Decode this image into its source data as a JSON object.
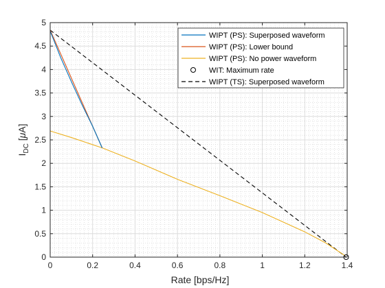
{
  "chart_data": {
    "type": "line",
    "xlabel": "Rate [bps/Hz]",
    "ylabel": {
      "main": "I",
      "sub": "DC",
      "unit_prefix": " [",
      "unit_mu": "μ",
      "unit_rest": "A]"
    },
    "xlim": [
      0,
      1.4
    ],
    "ylim": [
      0,
      5
    ],
    "xticks": [
      0,
      0.2,
      0.4,
      0.6,
      0.8,
      1,
      1.2,
      1.4
    ],
    "yticks": [
      0,
      0.5,
      1,
      1.5,
      2,
      2.5,
      3,
      3.5,
      4,
      4.5,
      5
    ],
    "xtick_labels": [
      "0",
      "0.2",
      "0.4",
      "0.6",
      "0.8",
      "1",
      "1.2",
      "1.4"
    ],
    "ytick_labels": [
      "0",
      "0.5",
      "1",
      "1.5",
      "2",
      "2.5",
      "3",
      "3.5",
      "4",
      "4.5",
      "5"
    ],
    "grid": true,
    "minor_grid": true,
    "legend_position": "top-right",
    "series": [
      {
        "name": "WIPT (PS): Superposed waveform",
        "color": "#0072BD",
        "style": "solid",
        "x": [
          0,
          0.05,
          0.1,
          0.15,
          0.2,
          0.245
        ],
        "y": [
          4.82,
          4.25,
          3.74,
          3.25,
          2.79,
          2.33
        ]
      },
      {
        "name": "WIPT (PS): Lower bound",
        "color": "#D95319",
        "style": "solid",
        "x": [
          0,
          0.245
        ],
        "y": [
          4.84,
          2.33
        ]
      },
      {
        "name": "WIPT (PS): No power waveform",
        "color": "#EDB120",
        "style": "solid",
        "x": [
          0,
          0.1,
          0.245,
          0.4,
          0.6,
          0.8,
          1.0,
          1.2,
          1.3,
          1.39
        ],
        "y": [
          2.69,
          2.55,
          2.33,
          2.05,
          1.66,
          1.31,
          0.95,
          0.54,
          0.3,
          0.03
        ]
      },
      {
        "name": "WIT: Maximum rate",
        "color": "#000000",
        "style": "marker-circle",
        "x": [
          1.395
        ],
        "y": [
          0.0
        ]
      },
      {
        "name": "WIPT (TS): Superposed waveform",
        "color": "#000000",
        "style": "dashed",
        "x": [
          0,
          1.395
        ],
        "y": [
          4.84,
          0.0
        ]
      }
    ]
  }
}
